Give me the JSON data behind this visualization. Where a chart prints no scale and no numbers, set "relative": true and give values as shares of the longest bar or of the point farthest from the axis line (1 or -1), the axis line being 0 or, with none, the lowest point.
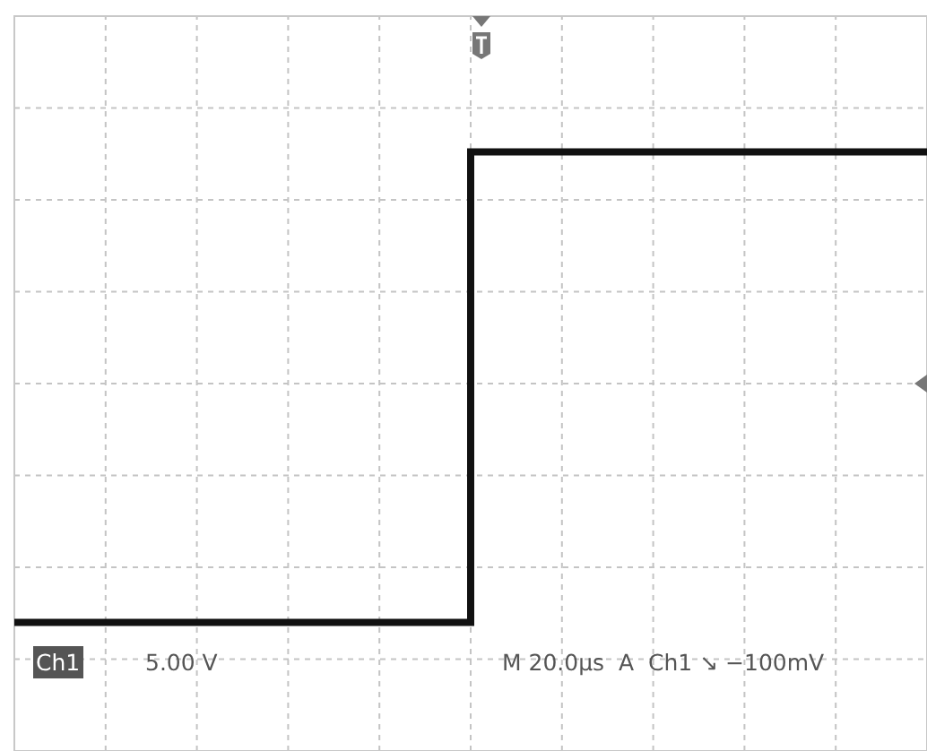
{
  "chart_data": {
    "type": "step",
    "relative": true,
    "grid": true,
    "categories": [
      null,
      null,
      null,
      null,
      null,
      null,
      null,
      null,
      null,
      null,
      null
    ],
    "series": [
      {
        "color": "#111111",
        "values": [
          -1,
          -1,
          -1,
          -1,
          -1,
          0.97,
          0.97,
          0.97,
          0.97,
          0.97,
          0.97
        ]
      }
    ],
    "annotations": [
      "Ch1",
      "5.00 V",
      "M 20.0µs  A  Ch1 ↘ −100mV"
    ]
  }
}
